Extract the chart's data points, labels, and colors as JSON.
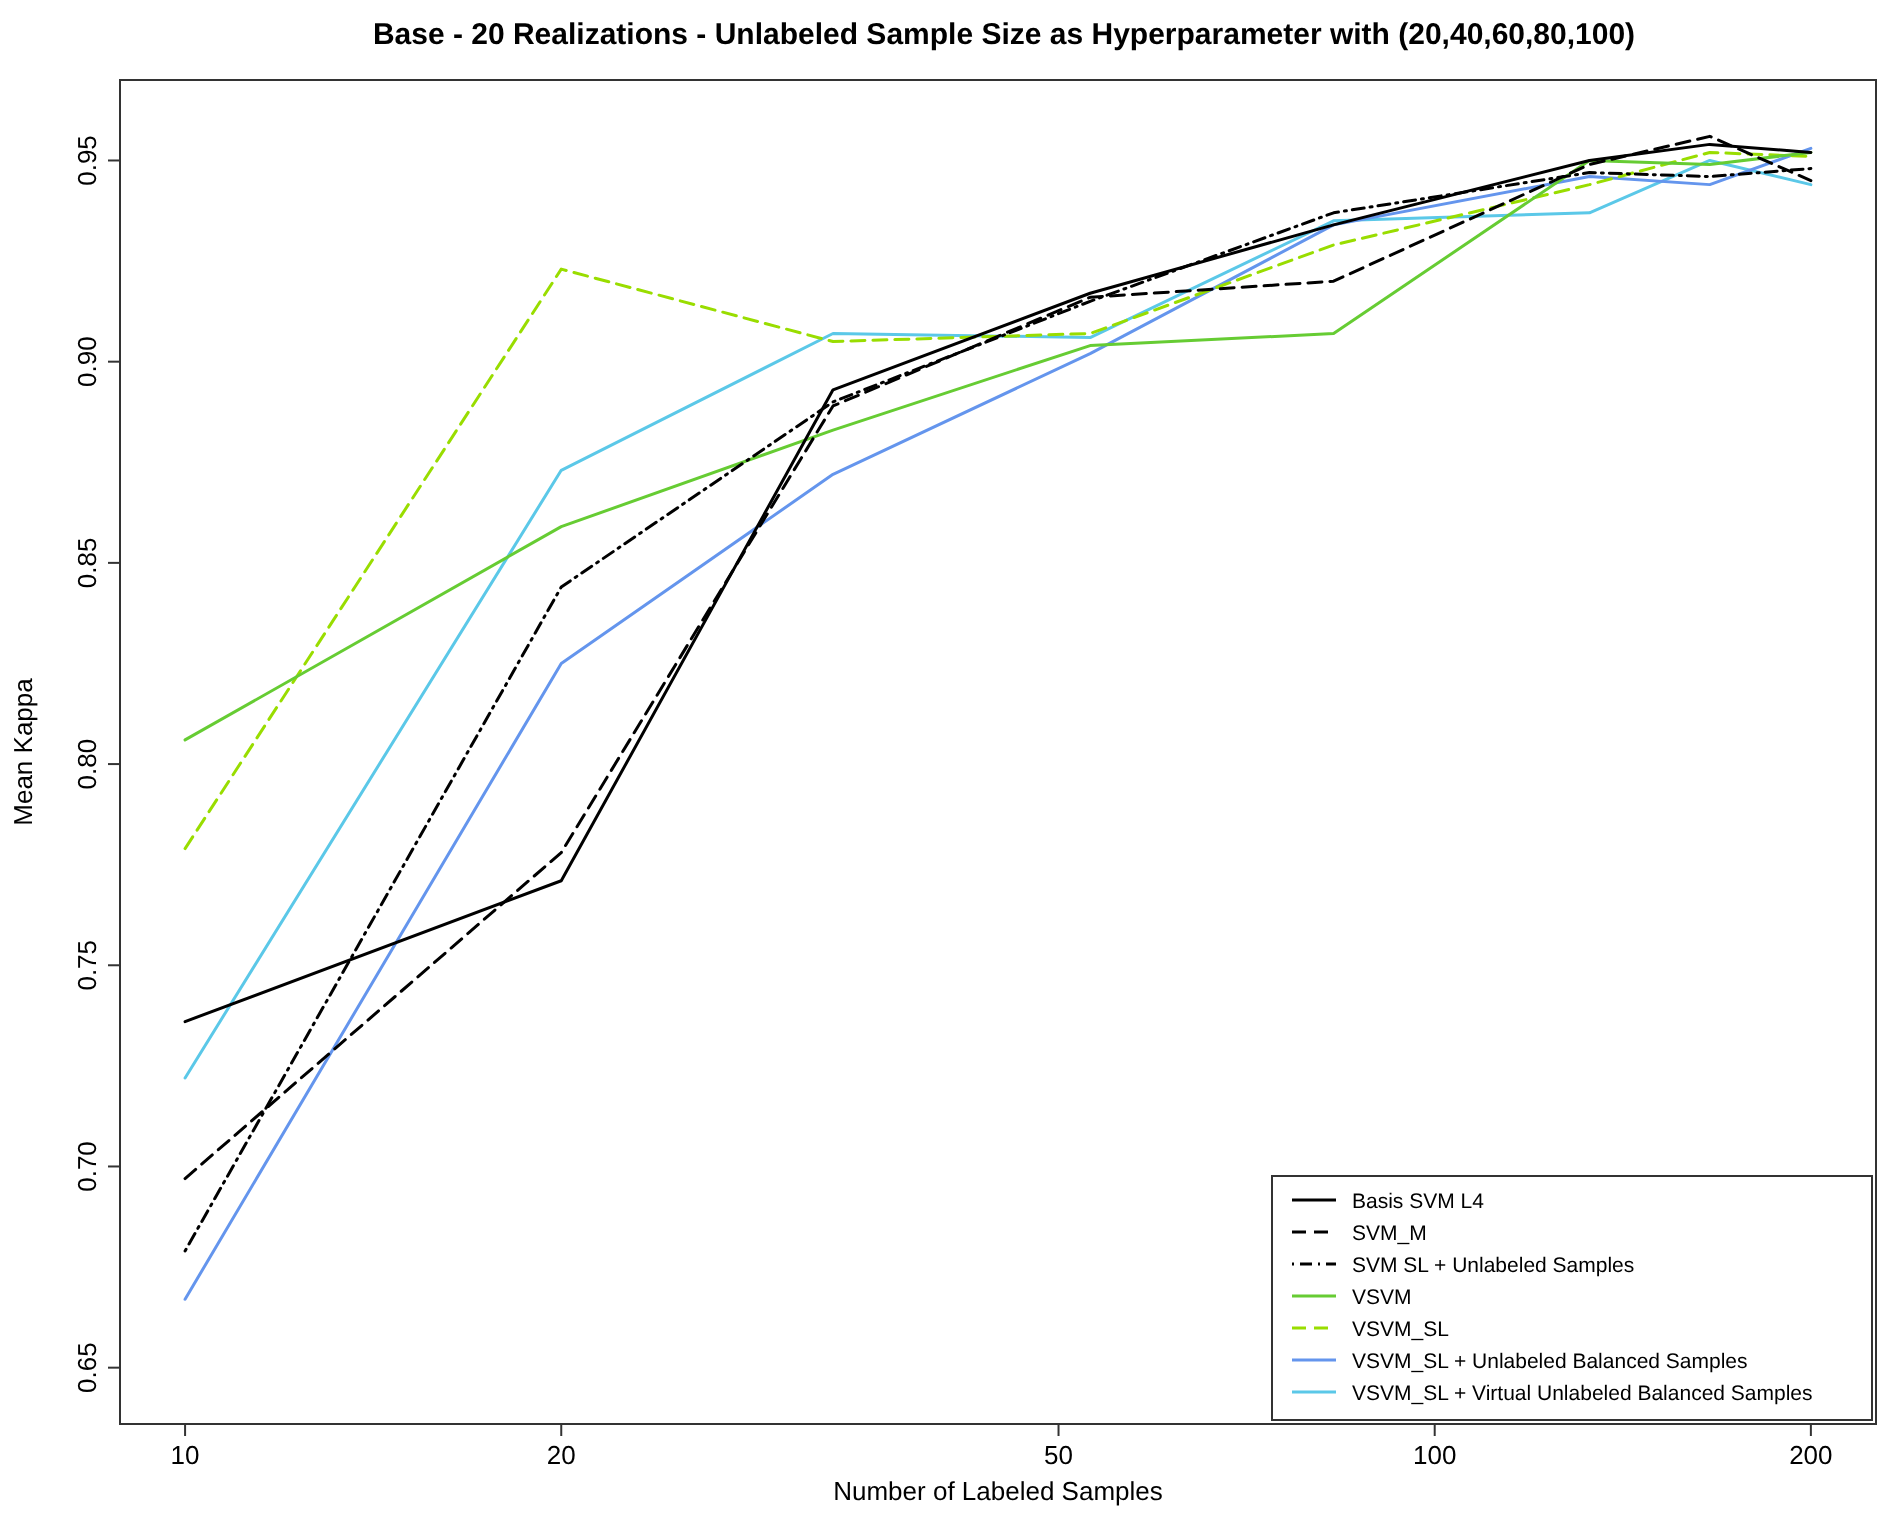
{
  "chart_data": {
    "type": "line",
    "title": "Base - 20 Realizations - Unlabeled Sample Size as Hyperparameter with (20,40,60,80,100)",
    "xlabel": "Number of Labeled Samples",
    "ylabel": "Mean Kappa",
    "log": "x",
    "x": [
      10,
      20,
      33,
      53,
      83,
      133,
      166,
      200
    ],
    "xlim": [
      8.87,
      225.5
    ],
    "xticks": [
      10,
      20,
      50,
      100,
      200
    ],
    "ylim": [
      0.636,
      0.97
    ],
    "yticks": [
      {
        "value": 0.65,
        "label": "0.65"
      },
      {
        "value": 0.7,
        "label": "0.70"
      },
      {
        "value": 0.75,
        "label": "0.75"
      },
      {
        "value": 0.8,
        "label": "0.80"
      },
      {
        "value": 0.85,
        "label": "0.85"
      },
      {
        "value": 0.9,
        "label": "0.90"
      },
      {
        "value": 0.95,
        "label": "0.95"
      }
    ],
    "grid": false,
    "legend": "bottom right",
    "marker": "none",
    "series": [
      {
        "name": "Basis SVM L4",
        "color": "#000000",
        "line_style": "solid",
        "values": [
          0.736,
          0.771,
          0.893,
          0.917,
          0.934,
          0.95,
          0.954,
          0.952
        ]
      },
      {
        "name": "SVM_M",
        "color": "#000000",
        "line_style": "dashed",
        "values": [
          0.697,
          0.778,
          0.889,
          0.916,
          0.92,
          0.949,
          0.956,
          0.945
        ]
      },
      {
        "name": "SVM SL + Unlabeled Samples",
        "color": "#000000",
        "line_style": "dotted",
        "values": [
          0.679,
          0.844,
          0.89,
          0.915,
          0.937,
          0.947,
          0.946,
          0.948
        ]
      },
      {
        "name": "VSVM",
        "color": "#66cc33",
        "line_style": "solid",
        "values": [
          0.806,
          0.859,
          0.883,
          0.904,
          0.907,
          0.95,
          0.949,
          0.952
        ]
      },
      {
        "name": "VSVM_SL",
        "color": "#99dd00",
        "line_style": "dashed",
        "values": [
          0.779,
          0.923,
          0.905,
          0.907,
          0.929,
          0.944,
          0.952,
          0.951
        ]
      },
      {
        "name": "VSVM_SL + Unlabeled Balanced Samples",
        "color": "#6495ed",
        "line_style": "solid",
        "values": [
          0.667,
          0.825,
          0.872,
          0.902,
          0.934,
          0.946,
          0.944,
          0.953
        ]
      },
      {
        "name": "VSVM_SL + Virtual Unlabeled Balanced Samples",
        "color": "#5bc8e8",
        "line_style": "solid",
        "values": [
          0.722,
          0.873,
          0.907,
          0.906,
          0.935,
          0.937,
          0.95,
          0.944
        ]
      }
    ]
  }
}
